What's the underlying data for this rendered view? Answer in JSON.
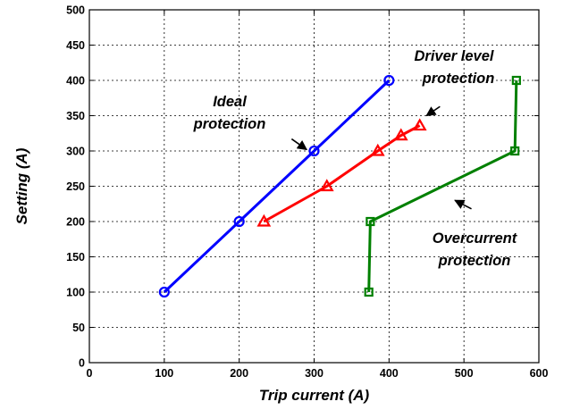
{
  "chart_data": {
    "type": "line",
    "xlabel": "Trip current (A)",
    "ylabel": "Setting (A)",
    "xlim": [
      0,
      600
    ],
    "ylim": [
      0,
      500
    ],
    "xticks": [
      0,
      100,
      200,
      300,
      400,
      500,
      600
    ],
    "yticks": [
      0,
      50,
      100,
      150,
      200,
      250,
      300,
      350,
      400,
      450,
      500
    ],
    "grid": true,
    "series": [
      {
        "key": "ideal",
        "color": "#0000ff",
        "marker": "circle",
        "x": [
          100,
          200,
          300,
          400
        ],
        "y": [
          100,
          200,
          300,
          400
        ]
      },
      {
        "key": "driver",
        "color": "#ff0000",
        "marker": "triangle",
        "x": [
          233,
          317,
          385,
          416,
          441
        ],
        "y": [
          200,
          250,
          300,
          322,
          336
        ]
      },
      {
        "key": "overcurrent",
        "color": "#008000",
        "marker": "square",
        "x": [
          373,
          375,
          568,
          570
        ],
        "y": [
          100,
          200,
          300,
          400
        ]
      }
    ],
    "annotations": [
      {
        "key": "ideal",
        "lines": [
          "Ideal",
          "protection"
        ],
        "arrow_from": [
          270,
          317
        ],
        "arrow_to": [
          290,
          302
        ]
      },
      {
        "key": "driver",
        "lines": [
          "Driver level",
          "protection"
        ],
        "arrow_from": [
          468,
          363
        ],
        "arrow_to": [
          450,
          350
        ]
      },
      {
        "key": "overcurrent",
        "lines": [
          "Overcurrent",
          "protection"
        ],
        "arrow_from": [
          510,
          218
        ],
        "arrow_to": [
          488,
          230
        ]
      }
    ]
  }
}
